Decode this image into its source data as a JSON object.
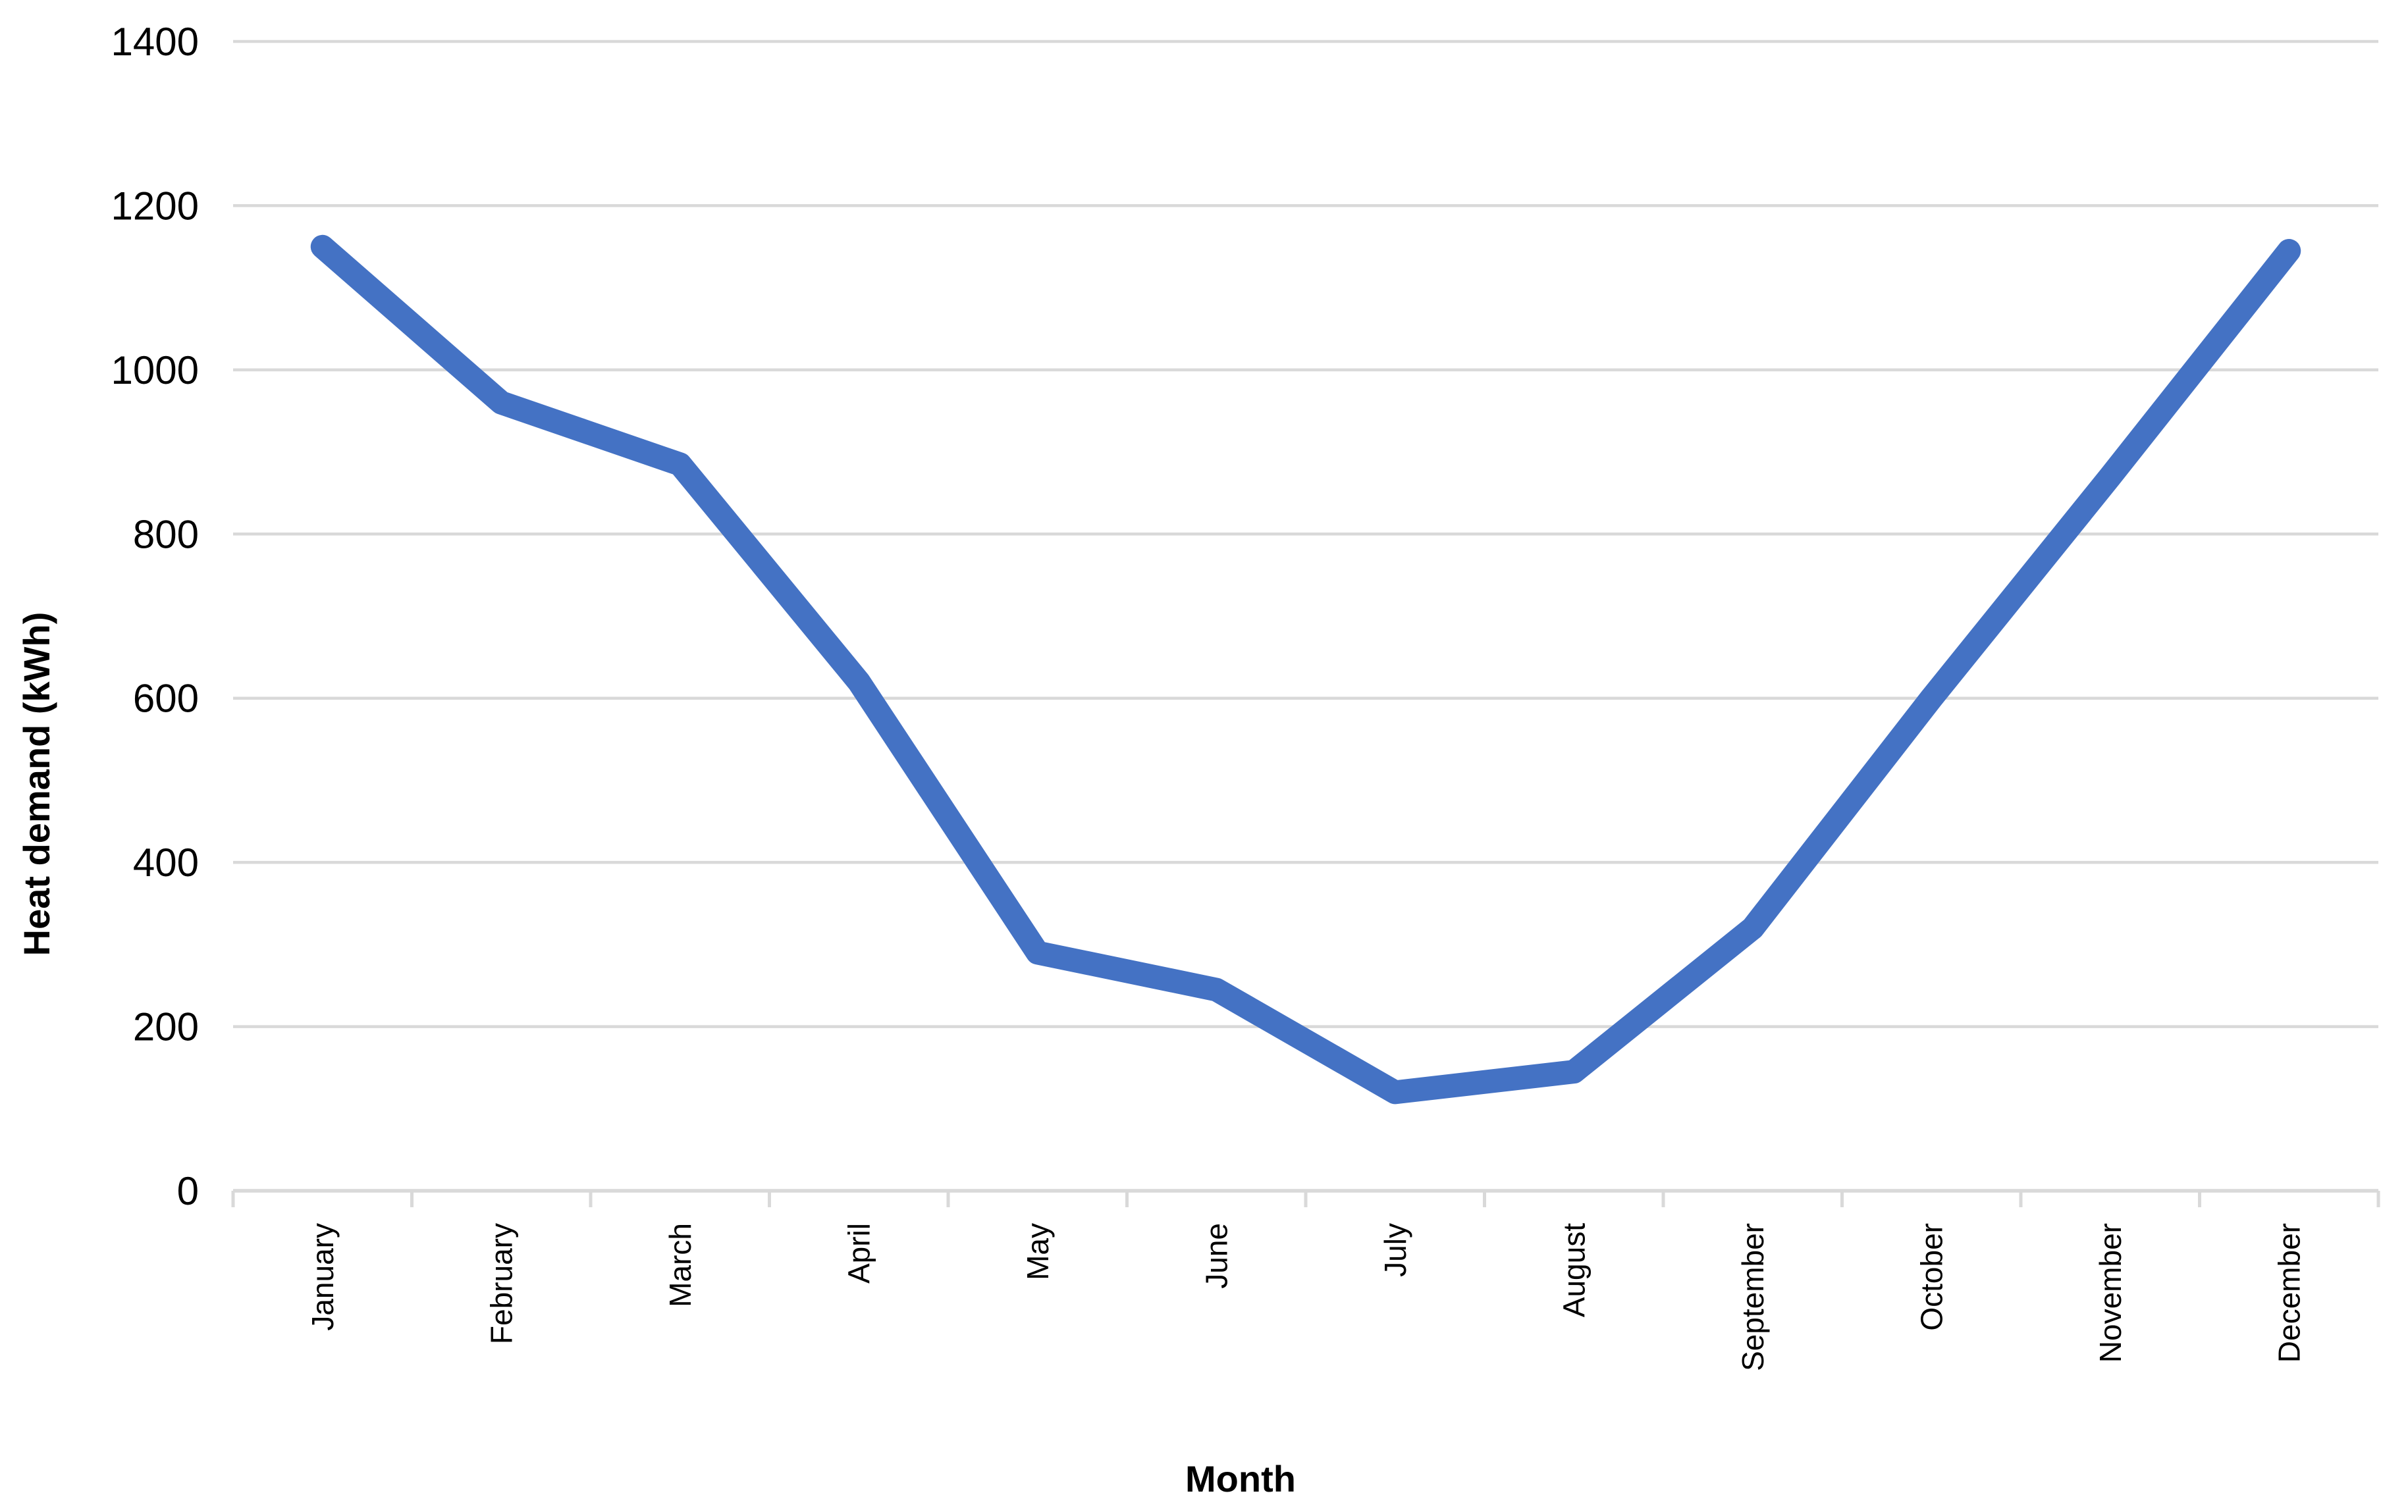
{
  "chart_data": {
    "type": "line",
    "title": "",
    "xlabel": "Month",
    "ylabel": "Heat demand (kWh)",
    "categories": [
      "January",
      "February",
      "March",
      "April",
      "May",
      "June",
      "July",
      "August",
      "September",
      "October",
      "November",
      "December"
    ],
    "series": [
      {
        "name": "Heat demand",
        "values": [
          1150,
          960,
          885,
          620,
          290,
          245,
          120,
          145,
          320,
          600,
          870,
          1145
        ]
      }
    ],
    "ylim": [
      0,
      1400
    ],
    "yticks": [
      0,
      200,
      400,
      600,
      800,
      1000,
      1200,
      1400
    ],
    "grid": "horizontal",
    "legend": "none",
    "colors": {
      "line": "#4472C4",
      "gridline": "#D9D9D9",
      "axis": "#D9D9D9",
      "text": "#000000",
      "background": "#FFFFFF"
    }
  }
}
